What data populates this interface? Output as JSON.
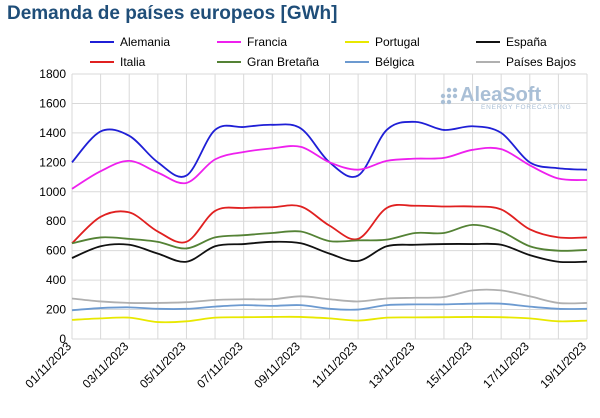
{
  "title": "Demanda de países europeos [GWh]",
  "logo": {
    "name": "AleaSoft",
    "tagline": "ENERGY FORECASTING"
  },
  "chart_data": {
    "type": "line",
    "title": "Demanda de países europeos [GWh]",
    "xlabel": "",
    "ylabel": "",
    "ylim": [
      0,
      1800
    ],
    "yticks": [
      0,
      200,
      400,
      600,
      800,
      1000,
      1200,
      1400,
      1600,
      1800
    ],
    "grid": true,
    "legend_position": "top",
    "x": [
      "01/11/2023",
      "02/11/2023",
      "03/11/2023",
      "04/11/2023",
      "05/11/2023",
      "06/11/2023",
      "07/11/2023",
      "08/11/2023",
      "09/11/2023",
      "10/11/2023",
      "11/11/2023",
      "12/11/2023",
      "13/11/2023",
      "14/11/2023",
      "15/11/2023",
      "16/11/2023",
      "17/11/2023",
      "18/11/2023",
      "19/11/2023"
    ],
    "xtick_labels": [
      "01/11/2023",
      "03/11/2023",
      "05/11/2023",
      "07/11/2023",
      "09/11/2023",
      "11/11/2023",
      "13/11/2023",
      "15/11/2023",
      "17/11/2023",
      "19/11/2023"
    ],
    "series": [
      {
        "name": "Alemania",
        "color": "#1f1fd6",
        "values": [
          1200,
          1410,
          1380,
          1200,
          1110,
          1420,
          1440,
          1455,
          1430,
          1200,
          1110,
          1420,
          1475,
          1420,
          1445,
          1400,
          1200,
          1160,
          1150
        ]
      },
      {
        "name": "Francia",
        "color": "#ee20ee",
        "values": [
          1020,
          1140,
          1210,
          1130,
          1060,
          1220,
          1270,
          1295,
          1305,
          1200,
          1150,
          1210,
          1225,
          1230,
          1285,
          1290,
          1180,
          1090,
          1080
        ]
      },
      {
        "name": "Portugal",
        "color": "#e8e800",
        "values": [
          130,
          140,
          145,
          115,
          120,
          145,
          148,
          150,
          150,
          140,
          125,
          145,
          147,
          148,
          150,
          148,
          140,
          120,
          125
        ]
      },
      {
        "name": "España",
        "color": "#111111",
        "values": [
          550,
          630,
          640,
          580,
          525,
          630,
          645,
          660,
          650,
          580,
          530,
          630,
          640,
          645,
          645,
          640,
          570,
          525,
          525
        ]
      },
      {
        "name": "Italia",
        "color": "#e02020",
        "values": [
          650,
          830,
          860,
          730,
          660,
          870,
          890,
          895,
          900,
          770,
          680,
          890,
          905,
          900,
          900,
          880,
          745,
          690,
          690
        ]
      },
      {
        "name": "Gran Bretaña",
        "color": "#548235",
        "values": [
          650,
          690,
          680,
          660,
          615,
          690,
          705,
          720,
          730,
          665,
          670,
          675,
          720,
          720,
          775,
          730,
          630,
          600,
          605
        ]
      },
      {
        "name": "Bélgica",
        "color": "#6c9ad0",
        "values": [
          195,
          210,
          215,
          205,
          205,
          220,
          230,
          225,
          230,
          205,
          200,
          230,
          235,
          235,
          240,
          240,
          220,
          205,
          205
        ]
      },
      {
        "name": "Países Bajos",
        "color": "#b0b0b0",
        "values": [
          275,
          255,
          245,
          245,
          250,
          265,
          270,
          270,
          290,
          270,
          255,
          275,
          280,
          285,
          330,
          330,
          290,
          245,
          245
        ]
      }
    ]
  }
}
